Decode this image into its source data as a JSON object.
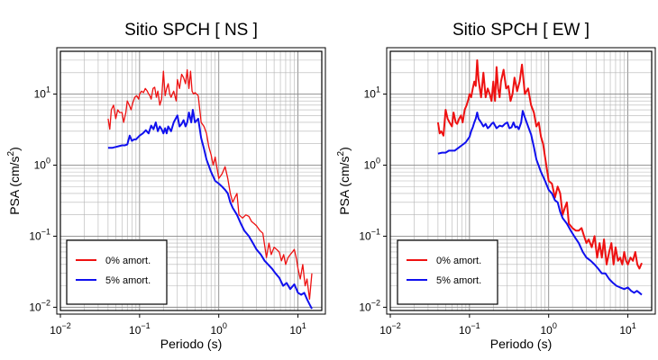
{
  "chart_data": [
    {
      "type": "line",
      "title": "Sitio SPCH [ NS ]",
      "xlabel": "Periodo (s)",
      "ylabel_main": "PSA (cm/s",
      "ylabel_sup": "2",
      "ylabel_close": ")",
      "xscale": "log",
      "yscale": "log",
      "xlim": [
        0.01,
        20
      ],
      "ylim": [
        0.009,
        40
      ],
      "grid": true,
      "legend_position": "bottom-left",
      "x_ticks": [
        {
          "base": "10",
          "exp": "−2",
          "value": 0.01
        },
        {
          "base": "10",
          "exp": "−1",
          "value": 0.1
        },
        {
          "base": "10",
          "exp": "0",
          "value": 1
        },
        {
          "base": "10",
          "exp": "1",
          "value": 10
        }
      ],
      "y_ticks": [
        {
          "base": "10",
          "exp": "−2",
          "value": 0.01
        },
        {
          "base": "10",
          "exp": "−1",
          "value": 0.1
        },
        {
          "base": "10",
          "exp": "0",
          "value": 1
        },
        {
          "base": "10",
          "exp": "1",
          "value": 10
        }
      ],
      "series": [
        {
          "name": "0% amort.",
          "color": "#ee1111",
          "width": 1.3,
          "x": [
            0.04,
            0.042,
            0.044,
            0.047,
            0.05,
            0.053,
            0.056,
            0.06,
            0.063,
            0.067,
            0.07,
            0.074,
            0.078,
            0.082,
            0.087,
            0.092,
            0.097,
            0.1,
            0.106,
            0.112,
            0.118,
            0.125,
            0.13,
            0.135,
            0.14,
            0.148,
            0.155,
            0.163,
            0.17,
            0.18,
            0.19,
            0.2,
            0.21,
            0.22,
            0.23,
            0.24,
            0.25,
            0.27,
            0.29,
            0.3,
            0.32,
            0.34,
            0.36,
            0.38,
            0.4,
            0.42,
            0.44,
            0.46,
            0.48,
            0.5,
            0.55,
            0.6,
            0.65,
            0.7,
            0.75,
            0.8,
            0.85,
            0.9,
            1.0,
            1.1,
            1.2,
            1.3,
            1.4,
            1.5,
            1.6,
            1.7,
            1.8,
            2.0,
            2.2,
            2.4,
            2.6,
            2.8,
            3.0,
            3.3,
            3.6,
            4.0,
            4.3,
            4.6,
            5.0,
            5.4,
            5.8,
            6.2,
            6.6,
            7.0,
            7.5,
            8.0,
            8.5,
            9.0,
            9.5,
            10.0,
            10.7,
            11.5,
            12.3,
            13.0,
            14.0,
            15.0
          ],
          "y": [
            4.5,
            3.2,
            6.0,
            7.0,
            4.5,
            6.0,
            5.5,
            5.5,
            4.0,
            5.5,
            8.0,
            7.0,
            6.0,
            7.5,
            9.0,
            9.5,
            8.5,
            10.0,
            11.0,
            10.5,
            12.0,
            11.0,
            10.0,
            9.5,
            8.5,
            12.0,
            12.5,
            9.0,
            11.0,
            7.0,
            8.5,
            21.0,
            9.5,
            12.0,
            14.0,
            10.0,
            9.0,
            11.0,
            8.0,
            16.0,
            12.0,
            19.0,
            17.0,
            14.0,
            22.0,
            12.0,
            21.0,
            11.0,
            10.0,
            10.5,
            9.5,
            4.0,
            3.5,
            2.8,
            1.8,
            1.4,
            1.0,
            1.3,
            0.65,
            0.75,
            0.95,
            0.65,
            0.4,
            0.3,
            0.35,
            0.4,
            0.2,
            0.18,
            0.2,
            0.19,
            0.16,
            0.15,
            0.14,
            0.12,
            0.11,
            0.05,
            0.08,
            0.055,
            0.07,
            0.065,
            0.06,
            0.045,
            0.055,
            0.04,
            0.05,
            0.055,
            0.06,
            0.065,
            0.05,
            0.035,
            0.025,
            0.04,
            0.02,
            0.025,
            0.013,
            0.03
          ]
        },
        {
          "name": "5% amort.",
          "color": "#1010ee",
          "width": 2.0,
          "x": [
            0.04,
            0.045,
            0.05,
            0.055,
            0.06,
            0.065,
            0.07,
            0.075,
            0.08,
            0.085,
            0.09,
            0.1,
            0.11,
            0.12,
            0.13,
            0.14,
            0.15,
            0.16,
            0.17,
            0.18,
            0.19,
            0.2,
            0.21,
            0.22,
            0.23,
            0.25,
            0.27,
            0.3,
            0.32,
            0.34,
            0.36,
            0.38,
            0.4,
            0.42,
            0.45,
            0.47,
            0.5,
            0.55,
            0.6,
            0.65,
            0.7,
            0.8,
            0.9,
            1.0,
            1.1,
            1.2,
            1.3,
            1.4,
            1.5,
            1.7,
            1.9,
            2.1,
            2.4,
            2.7,
            3.0,
            3.4,
            3.8,
            4.2,
            4.7,
            5.2,
            5.8,
            6.5,
            7.2,
            8.0,
            9.0,
            10.0,
            11.0,
            12.0,
            13.0,
            14.0,
            15.0
          ],
          "y": [
            1.75,
            1.75,
            1.8,
            1.85,
            1.9,
            1.9,
            1.95,
            2.6,
            2.2,
            2.3,
            2.3,
            2.6,
            2.8,
            3.1,
            2.8,
            3.6,
            3.2,
            4.0,
            3.0,
            3.5,
            3.2,
            2.8,
            3.3,
            2.8,
            3.5,
            3.0,
            4.0,
            5.0,
            3.5,
            3.8,
            4.3,
            3.5,
            4.0,
            5.5,
            4.0,
            6.0,
            4.0,
            4.5,
            2.4,
            1.7,
            1.2,
            0.8,
            0.6,
            0.55,
            0.5,
            0.45,
            0.4,
            0.3,
            0.25,
            0.2,
            0.15,
            0.12,
            0.1,
            0.08,
            0.065,
            0.055,
            0.045,
            0.04,
            0.035,
            0.03,
            0.026,
            0.02,
            0.022,
            0.018,
            0.021,
            0.016,
            0.015,
            0.016,
            0.013,
            0.011,
            0.0095
          ]
        }
      ]
    },
    {
      "type": "line",
      "title": "Sitio SPCH [ EW ]",
      "xlabel": "Periodo (s)",
      "ylabel_main": "PSA (cm/s",
      "ylabel_sup": "2",
      "ylabel_close": ")",
      "xscale": "log",
      "yscale": "log",
      "xlim": [
        0.01,
        20
      ],
      "ylim": [
        0.009,
        40
      ],
      "grid": true,
      "legend_position": "bottom-left",
      "x_ticks": [
        {
          "base": "10",
          "exp": "−2",
          "value": 0.01
        },
        {
          "base": "10",
          "exp": "−1",
          "value": 0.1
        },
        {
          "base": "10",
          "exp": "0",
          "value": 1
        },
        {
          "base": "10",
          "exp": "1",
          "value": 10
        }
      ],
      "y_ticks": [
        {
          "base": "10",
          "exp": "−2",
          "value": 0.01
        },
        {
          "base": "10",
          "exp": "−1",
          "value": 0.1
        },
        {
          "base": "10",
          "exp": "0",
          "value": 1
        },
        {
          "base": "10",
          "exp": "1",
          "value": 10
        }
      ],
      "series": [
        {
          "name": "0% amort.",
          "color": "#ee1111",
          "width": 2.0,
          "x": [
            0.04,
            0.042,
            0.044,
            0.047,
            0.05,
            0.053,
            0.056,
            0.06,
            0.063,
            0.067,
            0.07,
            0.074,
            0.078,
            0.082,
            0.087,
            0.092,
            0.097,
            0.1,
            0.105,
            0.11,
            0.115,
            0.12,
            0.125,
            0.13,
            0.135,
            0.14,
            0.15,
            0.16,
            0.17,
            0.18,
            0.19,
            0.2,
            0.21,
            0.22,
            0.23,
            0.24,
            0.25,
            0.27,
            0.29,
            0.31,
            0.33,
            0.35,
            0.37,
            0.4,
            0.43,
            0.46,
            0.5,
            0.55,
            0.6,
            0.65,
            0.7,
            0.75,
            0.8,
            0.85,
            0.9,
            1.0,
            1.1,
            1.2,
            1.3,
            1.4,
            1.5,
            1.6,
            1.7,
            1.8,
            2.0,
            2.2,
            2.4,
            2.6,
            2.8,
            3.0,
            3.2,
            3.5,
            3.8,
            4.1,
            4.4,
            4.7,
            5.0,
            5.4,
            5.8,
            6.2,
            6.6,
            7.0,
            7.5,
            8.0,
            8.5,
            9.0,
            9.5,
            10.0,
            10.8,
            11.6,
            12.4,
            13.2,
            14.0,
            15.0
          ],
          "y": [
            4.0,
            2.8,
            3.0,
            2.6,
            6.0,
            4.5,
            4.0,
            3.5,
            5.5,
            4.0,
            3.8,
            4.5,
            5.0,
            4.0,
            6.0,
            7.0,
            8.5,
            10.0,
            9.0,
            12.0,
            15.0,
            13.0,
            30.0,
            16.0,
            12.0,
            9.0,
            20.0,
            9.0,
            12.0,
            10.0,
            8.0,
            15.0,
            8.0,
            24.0,
            12.0,
            9.0,
            15.0,
            22.0,
            12.0,
            13.0,
            8.0,
            10.0,
            17.0,
            11.0,
            15.0,
            26.0,
            10.0,
            12.0,
            7.0,
            5.5,
            3.5,
            4.0,
            2.5,
            2.0,
            1.3,
            0.6,
            0.55,
            0.35,
            0.5,
            0.4,
            0.2,
            0.25,
            0.3,
            0.15,
            0.13,
            0.12,
            0.12,
            0.13,
            0.1,
            0.08,
            0.09,
            0.07,
            0.1,
            0.05,
            0.08,
            0.05,
            0.09,
            0.04,
            0.06,
            0.08,
            0.04,
            0.07,
            0.045,
            0.05,
            0.04,
            0.06,
            0.045,
            0.04,
            0.05,
            0.045,
            0.06,
            0.04,
            0.035,
            0.042
          ]
        },
        {
          "name": "5% amort.",
          "color": "#1010ee",
          "width": 2.0,
          "x": [
            0.04,
            0.045,
            0.05,
            0.055,
            0.06,
            0.065,
            0.07,
            0.075,
            0.08,
            0.085,
            0.09,
            0.095,
            0.1,
            0.105,
            0.11,
            0.115,
            0.12,
            0.125,
            0.13,
            0.14,
            0.15,
            0.16,
            0.17,
            0.18,
            0.19,
            0.2,
            0.22,
            0.24,
            0.26,
            0.28,
            0.3,
            0.32,
            0.34,
            0.36,
            0.38,
            0.4,
            0.42,
            0.45,
            0.47,
            0.5,
            0.55,
            0.6,
            0.65,
            0.7,
            0.8,
            0.9,
            1.0,
            1.1,
            1.2,
            1.3,
            1.4,
            1.5,
            1.7,
            1.9,
            2.1,
            2.4,
            2.7,
            3.0,
            3.4,
            3.8,
            4.2,
            4.7,
            5.2,
            5.8,
            6.5,
            7.2,
            8.0,
            9.0,
            10.0,
            11.0,
            12.0,
            13.0,
            14.0,
            15.0
          ],
          "y": [
            1.45,
            1.5,
            1.5,
            1.6,
            1.6,
            1.6,
            1.7,
            1.8,
            1.9,
            2.0,
            2.1,
            2.3,
            2.5,
            3.0,
            3.4,
            4.0,
            4.5,
            5.5,
            4.5,
            4.0,
            3.5,
            3.8,
            3.3,
            3.5,
            3.8,
            4.0,
            3.3,
            3.6,
            3.5,
            3.8,
            4.0,
            3.3,
            3.4,
            4.0,
            3.4,
            3.5,
            3.2,
            4.0,
            5.8,
            4.7,
            3.5,
            2.7,
            1.8,
            1.2,
            0.8,
            0.6,
            0.45,
            0.4,
            0.32,
            0.3,
            0.22,
            0.18,
            0.15,
            0.12,
            0.1,
            0.08,
            0.06,
            0.05,
            0.045,
            0.04,
            0.035,
            0.03,
            0.03,
            0.025,
            0.022,
            0.02,
            0.019,
            0.018,
            0.019,
            0.017,
            0.016,
            0.017,
            0.016,
            0.015
          ]
        }
      ]
    }
  ]
}
